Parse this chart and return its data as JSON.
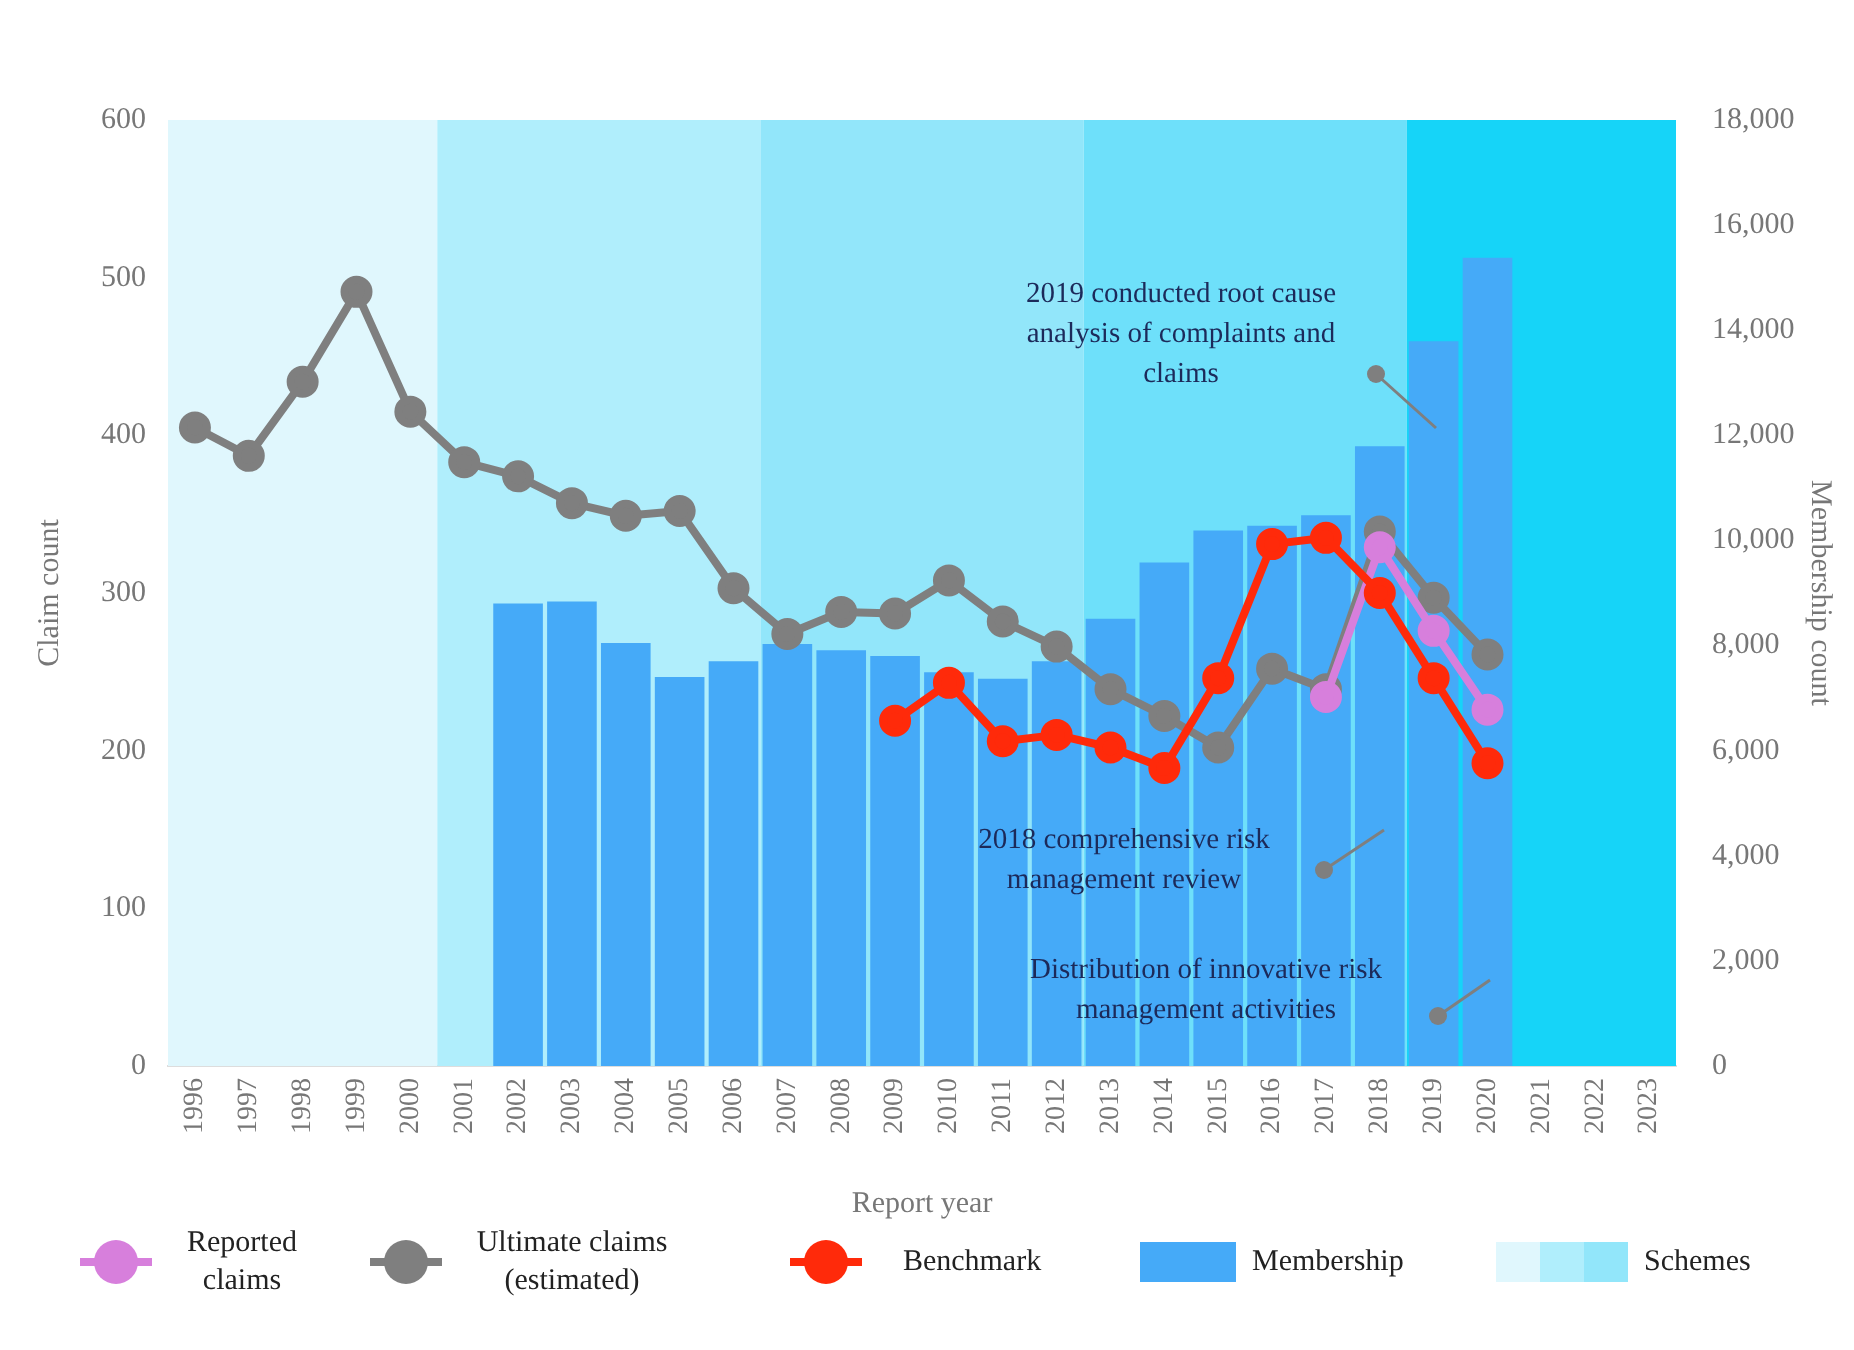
{
  "chart_data": {
    "type": "bar",
    "xlabel": "Report year",
    "ylabel": "Claim count",
    "y2label": "Membership count",
    "categories": [
      "1996",
      "1997",
      "1998",
      "1999",
      "2000",
      "2001",
      "2002",
      "2003",
      "2004",
      "2005",
      "2006",
      "2007",
      "2008",
      "2009",
      "2010",
      "2011",
      "2012",
      "2013",
      "2014",
      "2015",
      "2016",
      "2017",
      "2018",
      "2019",
      "2020",
      "2021",
      "2022",
      "2023"
    ],
    "series": [
      {
        "name": "Reported claims",
        "type": "line",
        "color": "#d77fdc",
        "values": [
          null,
          null,
          null,
          null,
          null,
          null,
          null,
          null,
          null,
          null,
          null,
          null,
          null,
          null,
          null,
          null,
          null,
          null,
          null,
          null,
          null,
          234,
          329,
          276,
          226,
          null,
          null,
          null
        ]
      },
      {
        "name": "Ultimate claims (estimated)",
        "type": "line",
        "color": "#7f7f7f",
        "values": [
          405,
          387,
          434,
          491,
          415,
          383,
          374,
          357,
          349,
          352,
          303,
          274,
          288,
          287,
          308,
          282,
          266,
          239,
          222,
          202,
          252,
          239,
          339,
          297,
          261,
          null,
          null,
          null
        ]
      },
      {
        "name": "Benchmark",
        "type": "line",
        "color": "#ff2a0a",
        "values": [
          null,
          null,
          null,
          null,
          null,
          null,
          null,
          null,
          null,
          null,
          null,
          null,
          null,
          219,
          243,
          206,
          210,
          202,
          189,
          246,
          331,
          335,
          300,
          246,
          192,
          null,
          null,
          null
        ]
      },
      {
        "name": "Membership",
        "type": "bar",
        "axis": "y2",
        "color": "#45aaf8",
        "values": [
          null,
          null,
          null,
          null,
          null,
          null,
          8800,
          8840,
          8050,
          7400,
          7700,
          8030,
          7910,
          7800,
          7490,
          7370,
          7700,
          8510,
          9580,
          10190,
          10280,
          10480,
          11790,
          13790,
          15380,
          null,
          null,
          null
        ]
      }
    ],
    "ylim": [
      0,
      600
    ],
    "yticks": [
      0,
      100,
      200,
      300,
      400,
      500,
      600
    ],
    "y2lim": [
      0,
      18000
    ],
    "y2ticks": [
      0,
      {
        "value": 2000,
        "label": "2,000"
      },
      {
        "value": 4000,
        "label": "4,000"
      },
      {
        "value": 6000,
        "label": "6,000"
      },
      {
        "value": 8000,
        "label": "8,000"
      },
      {
        "value": 10000,
        "label": "10,000"
      },
      {
        "value": 12000,
        "label": "12,000"
      },
      {
        "value": 14000,
        "label": "14,000"
      },
      {
        "value": 16000,
        "label": "16,000"
      },
      {
        "value": 18000,
        "label": "18,000"
      }
    ],
    "bands": [
      {
        "axis": "x",
        "from": "1996",
        "to": "2000",
        "color": "#e0f7fd"
      },
      {
        "axis": "x",
        "from": "2001",
        "to": "2006",
        "color": "#b0eefc"
      },
      {
        "axis": "x",
        "from": "2007",
        "to": "2012",
        "color": "#92e6fa",
        "label": "Schemes"
      },
      {
        "axis": "x",
        "from": "2013",
        "to": "2018",
        "color": "#6ee0fa"
      },
      {
        "axis": "x",
        "from": "2019",
        "to": "2023",
        "color": "#16d4f8"
      }
    ],
    "annotations": [
      "2019 conducted root cause analysis of complaints and claims",
      "2018 comprehensive risk management review",
      "Distribution of innovative risk management activities"
    ],
    "marker": "circle",
    "grid": false,
    "legend": "bottom"
  }
}
